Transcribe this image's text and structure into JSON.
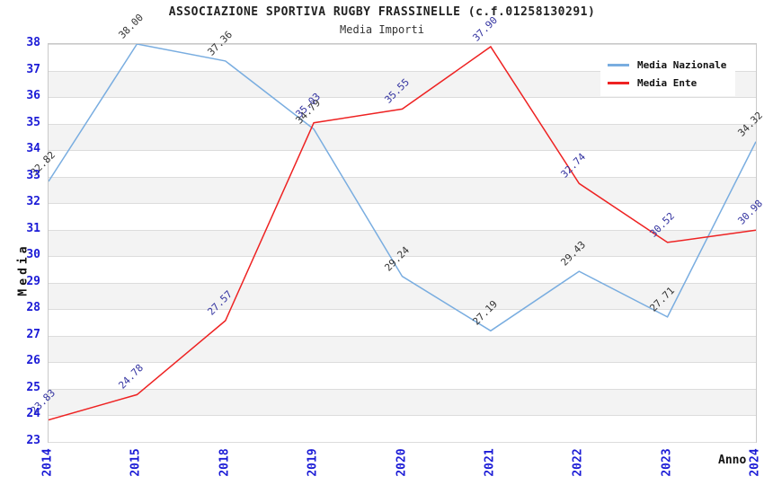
{
  "chart_data": {
    "type": "line",
    "title": "ASSOCIAZIONE SPORTIVA RUGBY FRASSINELLE (c.f.01258130291)",
    "subtitle": "Media Importi",
    "xlabel": "Anno",
    "ylabel": "Media",
    "categories": [
      "2014",
      "2015",
      "2018",
      "2019",
      "2020",
      "2021",
      "2022",
      "2023",
      "2024"
    ],
    "ylim": [
      23,
      38
    ],
    "y_ticks": [
      38,
      37,
      36,
      35,
      34,
      33,
      32,
      31,
      30,
      29,
      28,
      27,
      26,
      25,
      24,
      23
    ],
    "grid": "horizontal-only",
    "legend_position": "top-right-inside",
    "series": [
      {
        "name": "Media Nazionale",
        "color": "#79ade0",
        "label_color": "#333333",
        "values": [
          32.82,
          38.0,
          37.36,
          34.79,
          29.24,
          27.19,
          29.43,
          27.71,
          34.32
        ],
        "labels": [
          "32.82",
          "38.00",
          "37.36",
          "34.79",
          "29.24",
          "27.19",
          "29.43",
          "27.71",
          "34.32"
        ]
      },
      {
        "name": "Media Ente",
        "color": "#ee2222",
        "label_color": "#3333a0",
        "values": [
          23.83,
          24.78,
          27.57,
          35.03,
          35.55,
          37.9,
          32.74,
          30.52,
          30.98
        ],
        "labels": [
          "23.83",
          "24.78",
          "27.57",
          "35.03",
          "35.55",
          "37.90",
          "32.74",
          "30.52",
          "30.98"
        ]
      }
    ],
    "colors": {
      "tick_label": "#1b1bd6",
      "grid_line": "#dcdcdc",
      "band_fill": "#f3f3f3",
      "plot_border": "#c9c9c9",
      "title_text": "#222222",
      "axis_label_text": "#111111",
      "background": "#ffffff"
    }
  }
}
